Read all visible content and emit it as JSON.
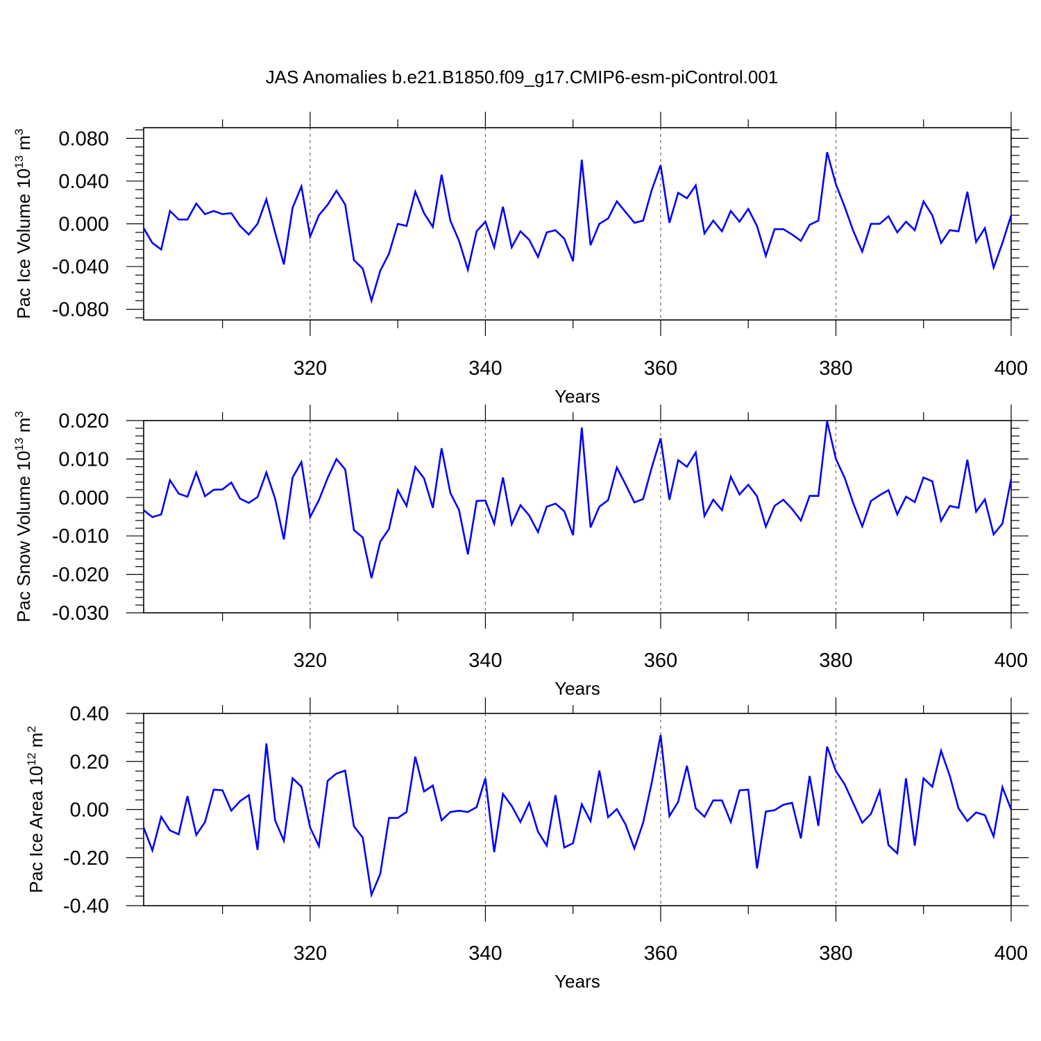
{
  "figure_title": "JAS Anomalies b.e21.B1850.f09_g17.CMIP6-esm-piControl.001",
  "colors": {
    "line": "#0000ff",
    "grid": "#666666",
    "axis": "#000000"
  },
  "chart_data": [
    {
      "type": "line",
      "title": "",
      "ylabel": "Pac Ice Volume 10",
      "ylabel_exp": "13",
      "ylabel_unit": " m",
      "ylabel_unit_exp": "3",
      "xlabel": "Years",
      "xlim": [
        301,
        400
      ],
      "ylim": [
        -0.09,
        0.09
      ],
      "yticks": [
        -0.08,
        -0.04,
        0.0,
        0.04,
        0.08
      ],
      "ytick_labels": [
        "-0.080",
        "-0.040",
        "0.000",
        "0.040",
        "0.080"
      ],
      "xticks": [
        320,
        340,
        360,
        380,
        400
      ],
      "xtick_labels": [
        "320",
        "340",
        "360",
        "380",
        "400"
      ],
      "grid_x": [
        320,
        340,
        360,
        380
      ],
      "x_start": 301,
      "series": [
        {
          "name": "Pac Ice Volume",
          "values": [
            -0.004,
            -0.018,
            -0.024,
            0.012,
            0.004,
            0.004,
            0.019,
            0.009,
            0.012,
            0.009,
            0.01,
            -0.002,
            -0.01,
            0.0,
            0.023,
            -0.008,
            -0.038,
            0.015,
            0.035,
            -0.012,
            0.008,
            0.018,
            0.031,
            0.018,
            -0.034,
            -0.042,
            -0.072,
            -0.044,
            -0.028,
            0.0,
            -0.002,
            0.03,
            0.01,
            -0.003,
            0.046,
            0.003,
            -0.016,
            -0.043,
            -0.007,
            0.002,
            -0.022,
            0.016,
            -0.022,
            -0.007,
            -0.015,
            -0.031,
            -0.008,
            -0.006,
            -0.014,
            -0.035,
            0.06,
            -0.02,
            0.0,
            0.005,
            0.021,
            0.011,
            0.001,
            0.003,
            0.032,
            0.055,
            0.001,
            0.029,
            0.024,
            0.036,
            -0.009,
            0.003,
            -0.007,
            0.012,
            0.002,
            0.014,
            -0.002,
            -0.03,
            -0.005,
            -0.005,
            -0.01,
            -0.016,
            -0.001,
            0.003,
            0.067,
            0.037,
            0.016,
            -0.007,
            -0.026,
            0.0,
            0.0,
            0.007,
            -0.008,
            0.002,
            -0.006,
            0.021,
            0.008,
            -0.018,
            -0.006,
            -0.007,
            0.03,
            -0.017,
            -0.004,
            -0.041,
            -0.018,
            0.008
          ]
        }
      ]
    },
    {
      "type": "line",
      "title": "",
      "ylabel": "Pac Snow Volume 10",
      "ylabel_exp": "13",
      "ylabel_unit": " m",
      "ylabel_unit_exp": "3",
      "xlabel": "Years",
      "xlim": [
        301,
        400
      ],
      "ylim": [
        -0.03,
        0.02
      ],
      "yticks": [
        -0.03,
        -0.02,
        -0.01,
        0.0,
        0.01,
        0.02
      ],
      "ytick_labels": [
        "-0.030",
        "-0.020",
        "-0.010",
        "0.000",
        "0.010",
        "0.020"
      ],
      "xticks": [
        320,
        340,
        360,
        380,
        400
      ],
      "xtick_labels": [
        "320",
        "340",
        "360",
        "380",
        "400"
      ],
      "grid_x": [
        320,
        340,
        360,
        380
      ],
      "x_start": 301,
      "series": [
        {
          "name": "Pac Snow Volume",
          "values": [
            -0.0033,
            -0.0051,
            -0.0044,
            0.0045,
            0.001,
            0.0002,
            0.0065,
            0.0003,
            0.002,
            0.0021,
            0.0039,
            -0.0003,
            -0.0014,
            0.0001,
            0.0065,
            -0.0003,
            -0.0109,
            0.0052,
            0.0092,
            -0.0051,
            -0.0007,
            0.0051,
            0.01,
            0.0073,
            -0.0085,
            -0.0104,
            -0.021,
            -0.0115,
            -0.0082,
            0.0019,
            -0.0022,
            0.0079,
            0.005,
            -0.0027,
            0.0128,
            0.0012,
            -0.0033,
            -0.0148,
            -0.0009,
            -0.0008,
            -0.0068,
            0.0052,
            -0.007,
            -0.002,
            -0.0047,
            -0.009,
            -0.0024,
            -0.0016,
            -0.0036,
            -0.0098,
            0.0182,
            -0.0078,
            -0.0024,
            -0.0007,
            0.0078,
            0.0034,
            -0.0013,
            -0.0004,
            0.0079,
            0.0154,
            -0.0006,
            0.0097,
            0.008,
            0.0117,
            -0.0048,
            -0.0006,
            -0.0033,
            0.0054,
            0.0008,
            0.0033,
            0.0003,
            -0.0076,
            -0.0022,
            -0.0006,
            -0.003,
            -0.006,
            0.0004,
            0.0004,
            0.0198,
            0.01,
            0.0051,
            -0.0016,
            -0.0075,
            -0.0009,
            0.0006,
            0.0019,
            -0.0044,
            0.0002,
            -0.0012,
            0.0052,
            0.0042,
            -0.0061,
            -0.0022,
            -0.0027,
            0.0098,
            -0.0037,
            -0.0005,
            -0.0096,
            -0.0068,
            0.0048
          ]
        }
      ]
    },
    {
      "type": "line",
      "title": "",
      "ylabel": "Pac Ice Area 10",
      "ylabel_exp": "12",
      "ylabel_unit": " m",
      "ylabel_unit_exp": "2",
      "xlabel": "Years",
      "xlim": [
        301,
        400
      ],
      "ylim": [
        -0.4,
        0.4
      ],
      "yticks": [
        -0.4,
        -0.2,
        0.0,
        0.2,
        0.4
      ],
      "ytick_labels": [
        "-0.40",
        "-0.20",
        "0.00",
        "0.20",
        "0.40"
      ],
      "xticks": [
        320,
        340,
        360,
        380,
        400
      ],
      "xtick_labels": [
        "320",
        "340",
        "360",
        "380",
        "400"
      ],
      "grid_x": [
        320,
        340,
        360,
        380
      ],
      "x_start": 301,
      "series": [
        {
          "name": "Pac Ice Area",
          "values": [
            -0.075,
            -0.17,
            -0.03,
            -0.087,
            -0.103,
            0.056,
            -0.106,
            -0.052,
            0.083,
            0.08,
            -0.005,
            0.035,
            0.06,
            -0.168,
            0.275,
            -0.045,
            -0.13,
            0.13,
            0.095,
            -0.075,
            -0.152,
            0.12,
            0.15,
            0.162,
            -0.07,
            -0.117,
            -0.355,
            -0.268,
            -0.035,
            -0.035,
            -0.01,
            0.22,
            0.075,
            0.1,
            -0.045,
            -0.01,
            -0.005,
            -0.01,
            0.01,
            0.13,
            -0.177,
            0.065,
            0.015,
            -0.052,
            0.028,
            -0.092,
            -0.15,
            0.06,
            -0.158,
            -0.14,
            0.022,
            -0.048,
            0.162,
            -0.032,
            0.002,
            -0.062,
            -0.162,
            -0.055,
            0.115,
            0.31,
            -0.027,
            0.032,
            0.182,
            0.005,
            -0.03,
            0.038,
            0.038,
            -0.052,
            0.08,
            0.083,
            -0.245,
            -0.008,
            -0.003,
            0.02,
            0.028,
            -0.12,
            0.14,
            -0.068,
            0.262,
            0.16,
            0.105,
            0.025,
            -0.055,
            -0.018,
            0.078,
            -0.148,
            -0.182,
            0.13,
            -0.15,
            0.13,
            0.095,
            0.245,
            0.14,
            0.005,
            -0.048,
            -0.012,
            -0.023,
            -0.112,
            0.093,
            0.0
          ]
        }
      ]
    }
  ]
}
